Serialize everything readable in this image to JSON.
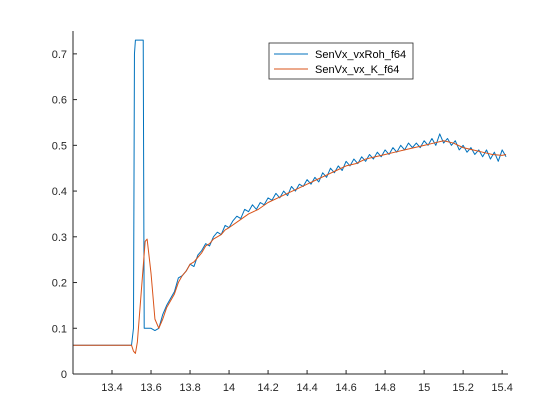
{
  "chart_data": {
    "type": "line",
    "title": "",
    "xlabel": "",
    "ylabel": "",
    "xlim": [
      13.2,
      15.43
    ],
    "ylim": [
      0,
      0.75
    ],
    "x_ticks": [
      "13.4",
      "13.6",
      "13.8",
      "14",
      "14.2",
      "14.4",
      "14.6",
      "14.8",
      "15",
      "15.2",
      "15.4"
    ],
    "y_ticks": [
      "0",
      "0.1",
      "0.2",
      "0.3",
      "0.4",
      "0.5",
      "0.6",
      "0.7"
    ],
    "x_tick_values": [
      13.4,
      13.6,
      13.8,
      14.0,
      14.2,
      14.4,
      14.6,
      14.8,
      15.0,
      15.2,
      15.4
    ],
    "y_tick_values": [
      0,
      0.1,
      0.2,
      0.3,
      0.4,
      0.5,
      0.6,
      0.7
    ],
    "grid": false,
    "legend_position": "top-right",
    "series": [
      {
        "name": "SenVx_vxRoh_f64",
        "color": "#0072BD",
        "points": [
          [
            13.2,
            0.063
          ],
          [
            13.5,
            0.063
          ],
          [
            13.51,
            0.1
          ],
          [
            13.515,
            0.7
          ],
          [
            13.52,
            0.73
          ],
          [
            13.56,
            0.73
          ],
          [
            13.565,
            0.1
          ],
          [
            13.6,
            0.1
          ],
          [
            13.62,
            0.095
          ],
          [
            13.64,
            0.1
          ],
          [
            13.66,
            0.13
          ],
          [
            13.68,
            0.15
          ],
          [
            13.7,
            0.165
          ],
          [
            13.72,
            0.18
          ],
          [
            13.74,
            0.21
          ],
          [
            13.76,
            0.215
          ],
          [
            13.78,
            0.225
          ],
          [
            13.8,
            0.24
          ],
          [
            13.82,
            0.235
          ],
          [
            13.84,
            0.26
          ],
          [
            13.86,
            0.27
          ],
          [
            13.88,
            0.285
          ],
          [
            13.9,
            0.28
          ],
          [
            13.92,
            0.3
          ],
          [
            13.94,
            0.31
          ],
          [
            13.96,
            0.305
          ],
          [
            13.98,
            0.325
          ],
          [
            14.0,
            0.32
          ],
          [
            14.02,
            0.335
          ],
          [
            14.04,
            0.345
          ],
          [
            14.06,
            0.34
          ],
          [
            14.08,
            0.36
          ],
          [
            14.1,
            0.355
          ],
          [
            14.12,
            0.37
          ],
          [
            14.14,
            0.36
          ],
          [
            14.16,
            0.375
          ],
          [
            14.18,
            0.37
          ],
          [
            14.2,
            0.385
          ],
          [
            14.22,
            0.38
          ],
          [
            14.24,
            0.395
          ],
          [
            14.26,
            0.385
          ],
          [
            14.28,
            0.4
          ],
          [
            14.3,
            0.39
          ],
          [
            14.32,
            0.41
          ],
          [
            14.34,
            0.4
          ],
          [
            14.36,
            0.415
          ],
          [
            14.38,
            0.41
          ],
          [
            14.4,
            0.425
          ],
          [
            14.42,
            0.415
          ],
          [
            14.44,
            0.43
          ],
          [
            14.46,
            0.42
          ],
          [
            14.48,
            0.44
          ],
          [
            14.5,
            0.43
          ],
          [
            14.52,
            0.45
          ],
          [
            14.54,
            0.44
          ],
          [
            14.56,
            0.455
          ],
          [
            14.58,
            0.445
          ],
          [
            14.6,
            0.465
          ],
          [
            14.62,
            0.455
          ],
          [
            14.64,
            0.47
          ],
          [
            14.66,
            0.46
          ],
          [
            14.68,
            0.475
          ],
          [
            14.7,
            0.465
          ],
          [
            14.72,
            0.48
          ],
          [
            14.74,
            0.47
          ],
          [
            14.76,
            0.485
          ],
          [
            14.78,
            0.475
          ],
          [
            14.8,
            0.49
          ],
          [
            14.82,
            0.48
          ],
          [
            14.84,
            0.495
          ],
          [
            14.86,
            0.485
          ],
          [
            14.88,
            0.5
          ],
          [
            14.9,
            0.49
          ],
          [
            14.92,
            0.505
          ],
          [
            14.94,
            0.495
          ],
          [
            14.96,
            0.505
          ],
          [
            14.98,
            0.495
          ],
          [
            15.0,
            0.51
          ],
          [
            15.02,
            0.5
          ],
          [
            15.04,
            0.515
          ],
          [
            15.06,
            0.5
          ],
          [
            15.08,
            0.525
          ],
          [
            15.1,
            0.505
          ],
          [
            15.12,
            0.515
          ],
          [
            15.14,
            0.5
          ],
          [
            15.16,
            0.51
          ],
          [
            15.18,
            0.49
          ],
          [
            15.2,
            0.5
          ],
          [
            15.22,
            0.485
          ],
          [
            15.24,
            0.495
          ],
          [
            15.26,
            0.48
          ],
          [
            15.28,
            0.49
          ],
          [
            15.3,
            0.475
          ],
          [
            15.32,
            0.49
          ],
          [
            15.34,
            0.47
          ],
          [
            15.36,
            0.485
          ],
          [
            15.38,
            0.465
          ],
          [
            15.4,
            0.49
          ],
          [
            15.42,
            0.475
          ]
        ]
      },
      {
        "name": "SenVx_vx_K_f64",
        "color": "#D95319",
        "points": [
          [
            13.2,
            0.063
          ],
          [
            13.5,
            0.063
          ],
          [
            13.51,
            0.05
          ],
          [
            13.52,
            0.045
          ],
          [
            13.53,
            0.07
          ],
          [
            13.55,
            0.18
          ],
          [
            13.57,
            0.29
          ],
          [
            13.58,
            0.295
          ],
          [
            13.6,
            0.22
          ],
          [
            13.62,
            0.12
          ],
          [
            13.64,
            0.1
          ],
          [
            13.66,
            0.12
          ],
          [
            13.68,
            0.145
          ],
          [
            13.7,
            0.16
          ],
          [
            13.72,
            0.175
          ],
          [
            13.74,
            0.2
          ],
          [
            13.76,
            0.215
          ],
          [
            13.78,
            0.225
          ],
          [
            13.8,
            0.24
          ],
          [
            13.82,
            0.245
          ],
          [
            13.84,
            0.255
          ],
          [
            13.86,
            0.265
          ],
          [
            13.88,
            0.28
          ],
          [
            13.9,
            0.285
          ],
          [
            13.92,
            0.295
          ],
          [
            13.94,
            0.3
          ],
          [
            13.96,
            0.305
          ],
          [
            13.98,
            0.315
          ],
          [
            14.0,
            0.32
          ],
          [
            14.05,
            0.335
          ],
          [
            14.1,
            0.35
          ],
          [
            14.15,
            0.36
          ],
          [
            14.2,
            0.375
          ],
          [
            14.25,
            0.385
          ],
          [
            14.3,
            0.395
          ],
          [
            14.35,
            0.405
          ],
          [
            14.4,
            0.415
          ],
          [
            14.45,
            0.425
          ],
          [
            14.5,
            0.435
          ],
          [
            14.55,
            0.445
          ],
          [
            14.6,
            0.455
          ],
          [
            14.65,
            0.46
          ],
          [
            14.7,
            0.47
          ],
          [
            14.75,
            0.475
          ],
          [
            14.8,
            0.48
          ],
          [
            14.85,
            0.485
          ],
          [
            14.9,
            0.49
          ],
          [
            14.95,
            0.495
          ],
          [
            15.0,
            0.5
          ],
          [
            15.05,
            0.505
          ],
          [
            15.1,
            0.51
          ],
          [
            15.15,
            0.505
          ],
          [
            15.2,
            0.495
          ],
          [
            15.25,
            0.49
          ],
          [
            15.3,
            0.485
          ],
          [
            15.35,
            0.48
          ],
          [
            15.4,
            0.478
          ],
          [
            15.42,
            0.48
          ]
        ]
      }
    ]
  }
}
